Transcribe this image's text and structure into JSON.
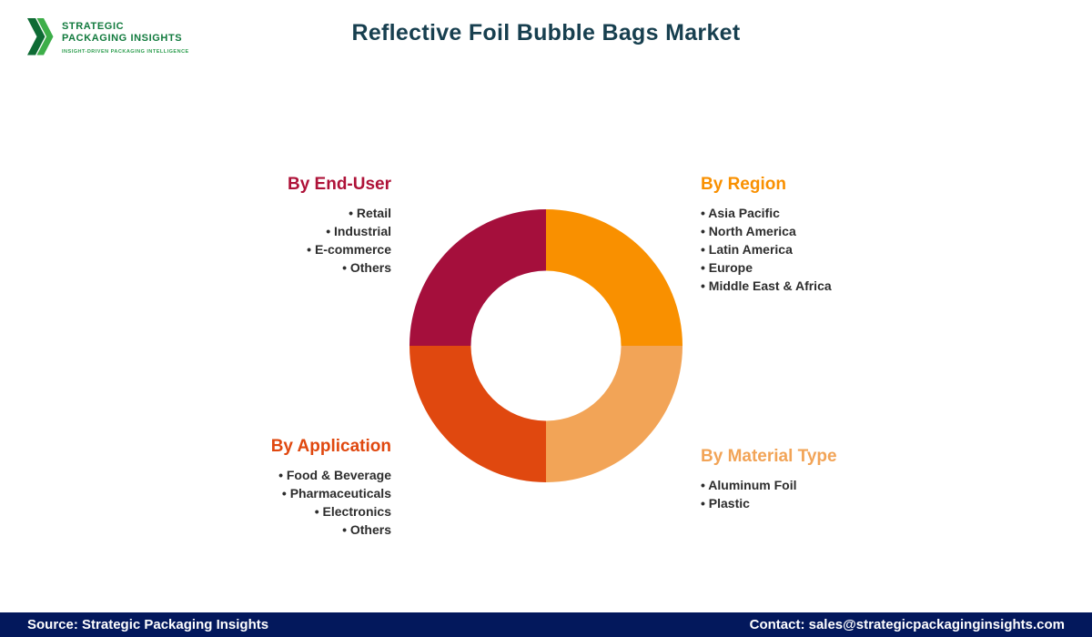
{
  "header": {
    "title": "Reflective Foil Bubble Bags Market",
    "title_color": "#173F4F",
    "logo": {
      "line1": "STRATEGIC",
      "line2": "PACKAGING INSIGHTS",
      "tagline": "INSIGHT-DRIVEN PACKAGING INTELLIGENCE",
      "green_dark": "#0E6B34",
      "green_light": "#3DAE49"
    }
  },
  "segments": {
    "end_user": {
      "title": "By End-User",
      "color": "#AE1238",
      "items": [
        "Retail",
        "Industrial",
        "E-commerce",
        "Others"
      ]
    },
    "region": {
      "title": "By Region",
      "color": "#F99000",
      "items": [
        "Asia Pacific",
        "North America",
        "Latin America",
        "Europe",
        "Middle East & Africa"
      ]
    },
    "application": {
      "title": "By Application",
      "color": "#E0480F",
      "items": [
        "Food & Beverage",
        "Pharmaceuticals",
        "Electronics",
        "Others"
      ]
    },
    "material": {
      "title": "By Material Type",
      "color": "#F2A457",
      "items": [
        "Aluminum Foil",
        "Plastic"
      ]
    }
  },
  "chart_data": {
    "type": "pie",
    "subtype": "donut",
    "title": "Reflective Foil Bubble Bags Market segmentation",
    "categories": [
      "By Region",
      "By Material Type",
      "By Application",
      "By End-User"
    ],
    "values": [
      25,
      25,
      25,
      25
    ],
    "colors": [
      "#F99000",
      "#F2A457",
      "#E0480F",
      "#A50F3C"
    ],
    "start_angle": 0,
    "direction": "clockwise",
    "inner_ratio": 0.55,
    "legend_position": "corners",
    "data_labels": false
  },
  "footer": {
    "source": "Source: Strategic Packaging Insights",
    "contact": "Contact: sales@strategicpackaginginsights.com",
    "bg_color": "#03185C"
  }
}
